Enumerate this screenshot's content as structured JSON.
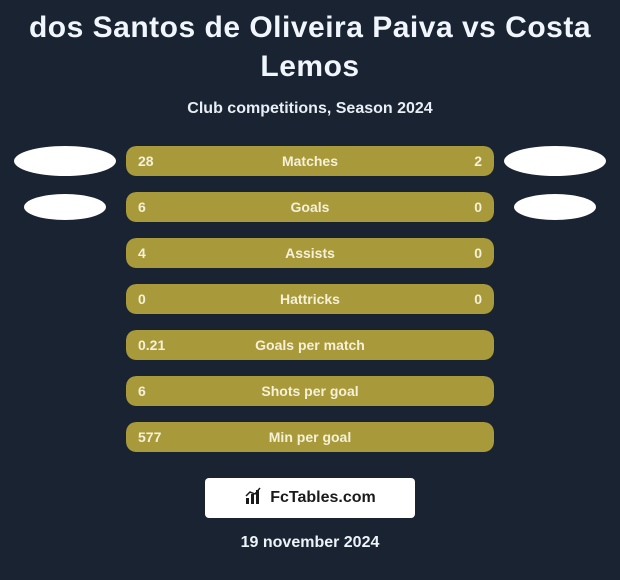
{
  "title": "dos Santos de Oliveira Paiva vs Costa Lemos",
  "subtitle": "Club competitions, Season 2024",
  "footer_brand": "FcTables.com",
  "date": "19 november 2024",
  "colors": {
    "page_bg": "#1a2332",
    "bar_fill": "#a89a3a",
    "track_bg": "#121a26",
    "text_main": "#ffffff",
    "text_on_bar": "#f5f0d8",
    "badge_white": "#ffffff"
  },
  "rows": [
    {
      "label": "Matches",
      "left_val": "28",
      "right_val": "2",
      "left_pct": 77,
      "right_pct": 23,
      "badge": "large"
    },
    {
      "label": "Goals",
      "left_val": "6",
      "right_val": "0",
      "left_pct": 74,
      "right_pct": 26,
      "badge": "small"
    },
    {
      "label": "Assists",
      "left_val": "4",
      "right_val": "0",
      "left_pct": 100,
      "right_pct": 0,
      "badge": "none"
    },
    {
      "label": "Hattricks",
      "left_val": "0",
      "right_val": "0",
      "left_pct": 100,
      "right_pct": 0,
      "badge": "none"
    },
    {
      "label": "Goals per match",
      "left_val": "0.21",
      "right_val": "",
      "left_pct": 100,
      "right_pct": 0,
      "badge": "none"
    },
    {
      "label": "Shots per goal",
      "left_val": "6",
      "right_val": "",
      "left_pct": 100,
      "right_pct": 0,
      "badge": "none"
    },
    {
      "label": "Min per goal",
      "left_val": "577",
      "right_val": "",
      "left_pct": 100,
      "right_pct": 0,
      "badge": "none"
    }
  ]
}
